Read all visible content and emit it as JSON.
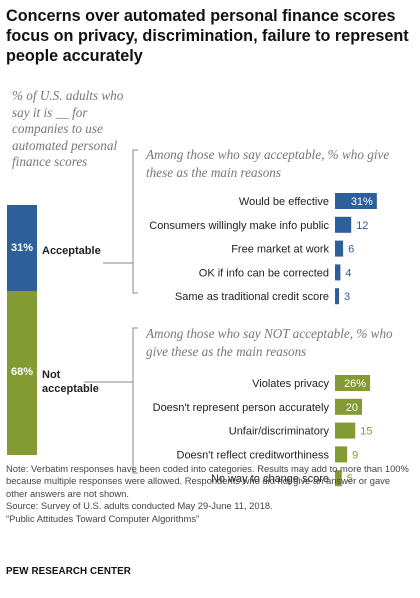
{
  "chart_data": {
    "type": "bar",
    "title": "Concerns over automated personal finance scores focus on privacy, discrimination, failure to represent people accurately",
    "subtitle": "% of U.S. adults who say it is __ for companies to use automated personal finance scores",
    "stacked": {
      "segments": [
        {
          "label": "Acceptable",
          "value": 31,
          "value_label": "31%",
          "color": "#2d5f9a"
        },
        {
          "label": "Not acceptable",
          "value": 68,
          "value_label": "68%",
          "color": "#849a32"
        }
      ]
    },
    "groups": [
      {
        "heading": "Among those who say acceptable, % who give these as the main reasons",
        "color": "#2d5f9a",
        "categories": [
          "Would be effective",
          "Consumers willingly make info public",
          "Free market at work",
          "OK if info can be corrected",
          "Same as traditional credit score"
        ],
        "values": [
          31,
          12,
          6,
          4,
          3
        ],
        "value_labels": [
          "31%",
          "12",
          "6",
          "4",
          "3"
        ]
      },
      {
        "heading": "Among those who say NOT acceptable, % who give these as the main reasons",
        "color": "#849a32",
        "categories": [
          "Violates privacy",
          "Doesn't represent person accurately",
          "Unfair/discriminatory",
          "Doesn't reflect creditworthiness",
          "No way to change score"
        ],
        "values": [
          26,
          20,
          15,
          9,
          5
        ],
        "value_labels": [
          "26%",
          "20",
          "15",
          "9",
          "5"
        ]
      }
    ]
  },
  "notes": [
    "Note: Verbatim responses have been coded into categories. Results may add to more than 100% because multiple responses were allowed. Respondents who did not give an answer or gave other answers are not shown.",
    "Source: Survey of U.S. adults conducted May 29-June 11, 2018.",
    "“Public Attitudes Toward Computer Algorithms”"
  ],
  "credit": "PEW RESEARCH CENTER"
}
